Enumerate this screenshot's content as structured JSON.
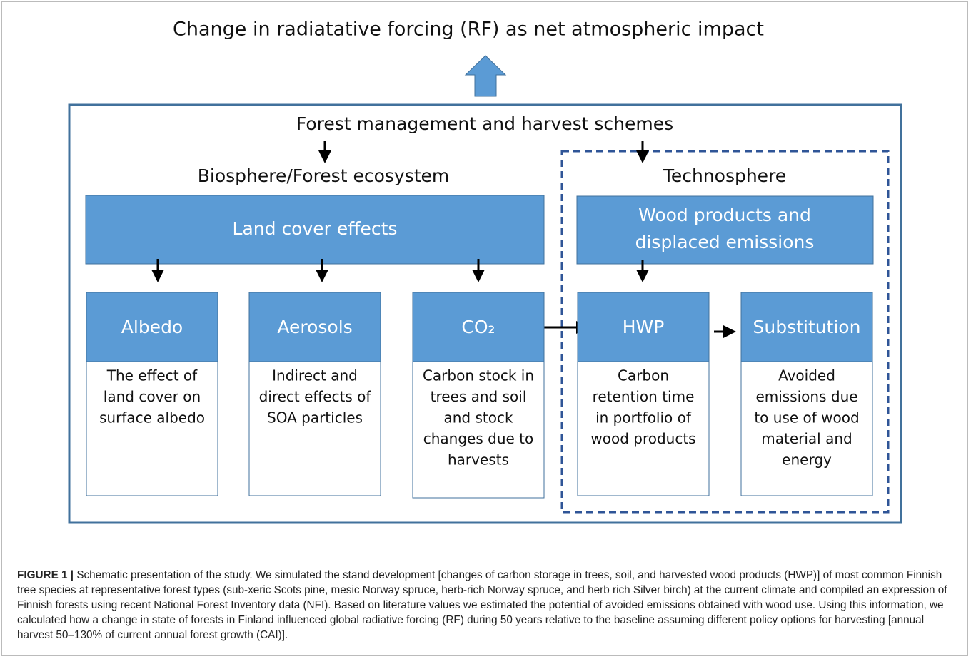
{
  "title": "Change in radiatative forcing (RF) as net atmospheric impact",
  "main": {
    "title": "Forest management and harvest schemes",
    "left_title": "Biosphere/Forest ecosystem",
    "right_title": "Technosphere",
    "left_box": [
      "Land cover effects"
    ],
    "right_box": [
      "Wood products and",
      "displaced emissions"
    ]
  },
  "nodes": [
    {
      "label": "Albedo",
      "text": [
        "The effect of",
        "land cover on",
        "surface albedo"
      ]
    },
    {
      "label": "Aerosols",
      "text": [
        "Indirect and",
        "direct effects of",
        "SOA particles"
      ]
    },
    {
      "label": "CO₂",
      "text": [
        "Carbon stock in",
        "trees and soil",
        "and stock",
        "changes due to",
        "harvests"
      ]
    },
    {
      "label": "HWP",
      "text": [
        "Carbon",
        "retention time",
        "in portfolio of",
        "wood products"
      ]
    },
    {
      "label": "Substitution",
      "text": [
        "Avoided",
        "emissions due",
        "to use of wood",
        "material and",
        "energy"
      ]
    }
  ],
  "caption": {
    "label": "FIGURE 1 |",
    "text": " Schematic presentation of the study. We simulated the stand development [changes of carbon storage in trees, soil, and harvested wood products (HWP)] of most common Finnish tree species at representative forest types (sub-xeric Scots pine, mesic Norway spruce, herb-rich Norway spruce, and herb rich Silver birch) at the current climate and compiled an expression of Finnish forests using recent National Forest Inventory data (NFI). Based on literature values we estimated the potential of avoided emissions obtained with wood use. Using this information, we calculated how a change in state of forests in Finland influenced global radiative forcing (RF) during 50 years relative to the baseline assuming different policy options for harvesting [annual harvest 50–130% of current annual forest growth (CAI)]."
  }
}
